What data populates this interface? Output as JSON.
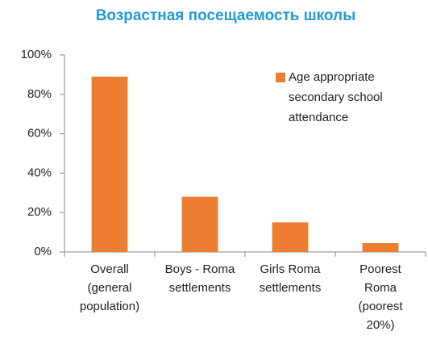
{
  "chart_data": {
    "type": "bar",
    "title": "Возрастная посещаемость школы",
    "categories": [
      "Overall (general population)",
      "Boys - Roma settlements",
      "Girls Roma settlements",
      "Poorest Roma (poorest 20%)"
    ],
    "series": [
      {
        "name": "Age appropriate secondary school attendance",
        "color": "#ed7d31",
        "values": [
          89,
          28,
          15,
          4.5
        ]
      }
    ],
    "ylim": [
      0,
      100
    ],
    "yticks": [
      {
        "value": 0,
        "label": "0%"
      },
      {
        "value": 20,
        "label": "20%"
      },
      {
        "value": 40,
        "label": "40%"
      },
      {
        "value": 60,
        "label": "60%"
      },
      {
        "value": 80,
        "label": "80%"
      },
      {
        "value": 100,
        "label": "100%"
      }
    ],
    "grid": false,
    "legend": "top-right"
  }
}
